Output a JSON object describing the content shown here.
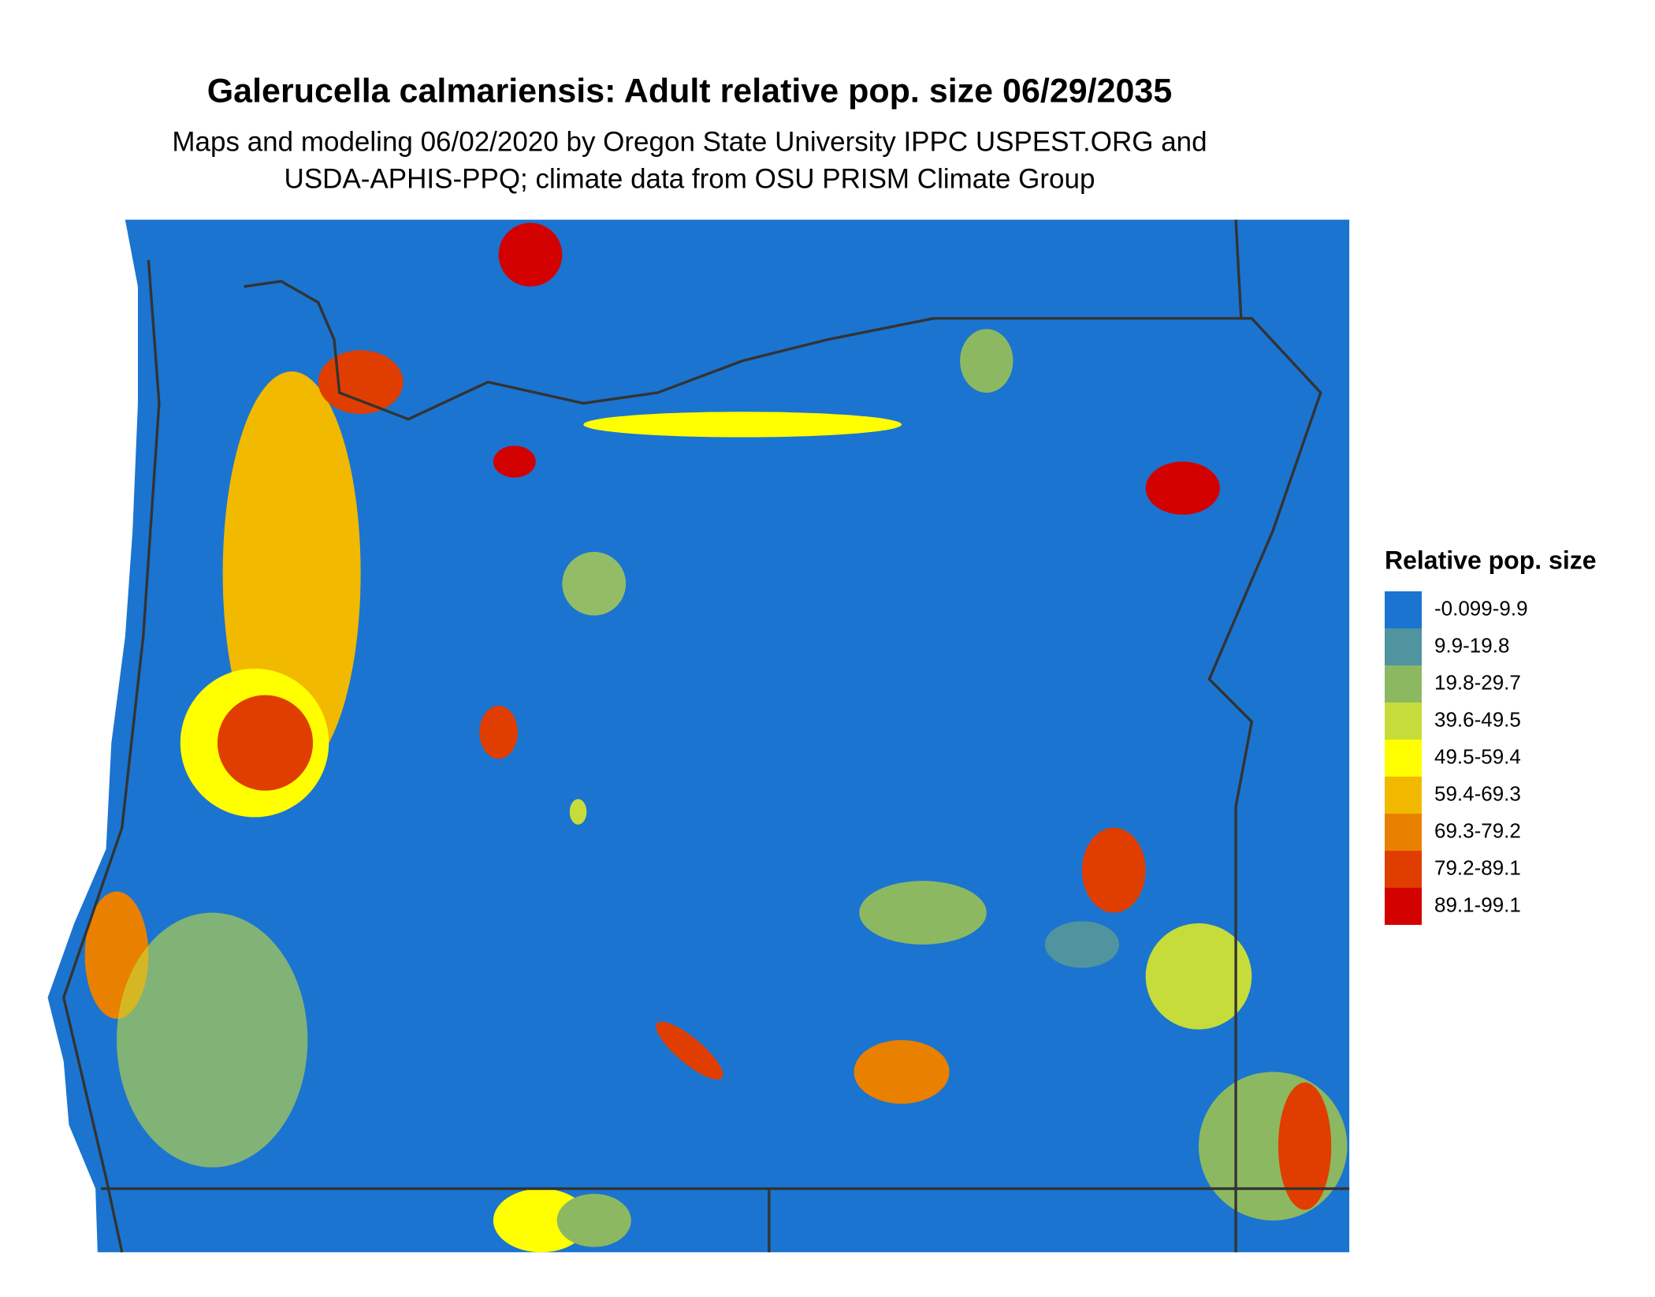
{
  "header": {
    "title": "Galerucella calmariensis: Adult relative pop. size 06/29/2035",
    "subtitle": [
      "Maps and modeling 06/02/2020 by Oregon State University IPPC USPEST.ORG and",
      "USDA-APHIS-PPQ; climate data from OSU PRISM Climate Group"
    ]
  },
  "legend": {
    "title": "Relative pop. size",
    "items": [
      {
        "label": "-0.099-9.9",
        "color": "#1b74cf"
      },
      {
        "label": "9.9-19.8",
        "color": "#4f949f"
      },
      {
        "label": "19.8-29.7",
        "color": "#8db862"
      },
      {
        "label": "39.6-49.5",
        "color": "#c6dc3a"
      },
      {
        "label": "49.5-59.4",
        "color": "#ffff00"
      },
      {
        "label": "59.4-69.3",
        "color": "#f1b900"
      },
      {
        "label": "69.3-79.2",
        "color": "#e98000"
      },
      {
        "label": "79.2-89.1",
        "color": "#e03e00"
      },
      {
        "label": "89.1-99.1",
        "color": "#d30000"
      }
    ]
  }
}
